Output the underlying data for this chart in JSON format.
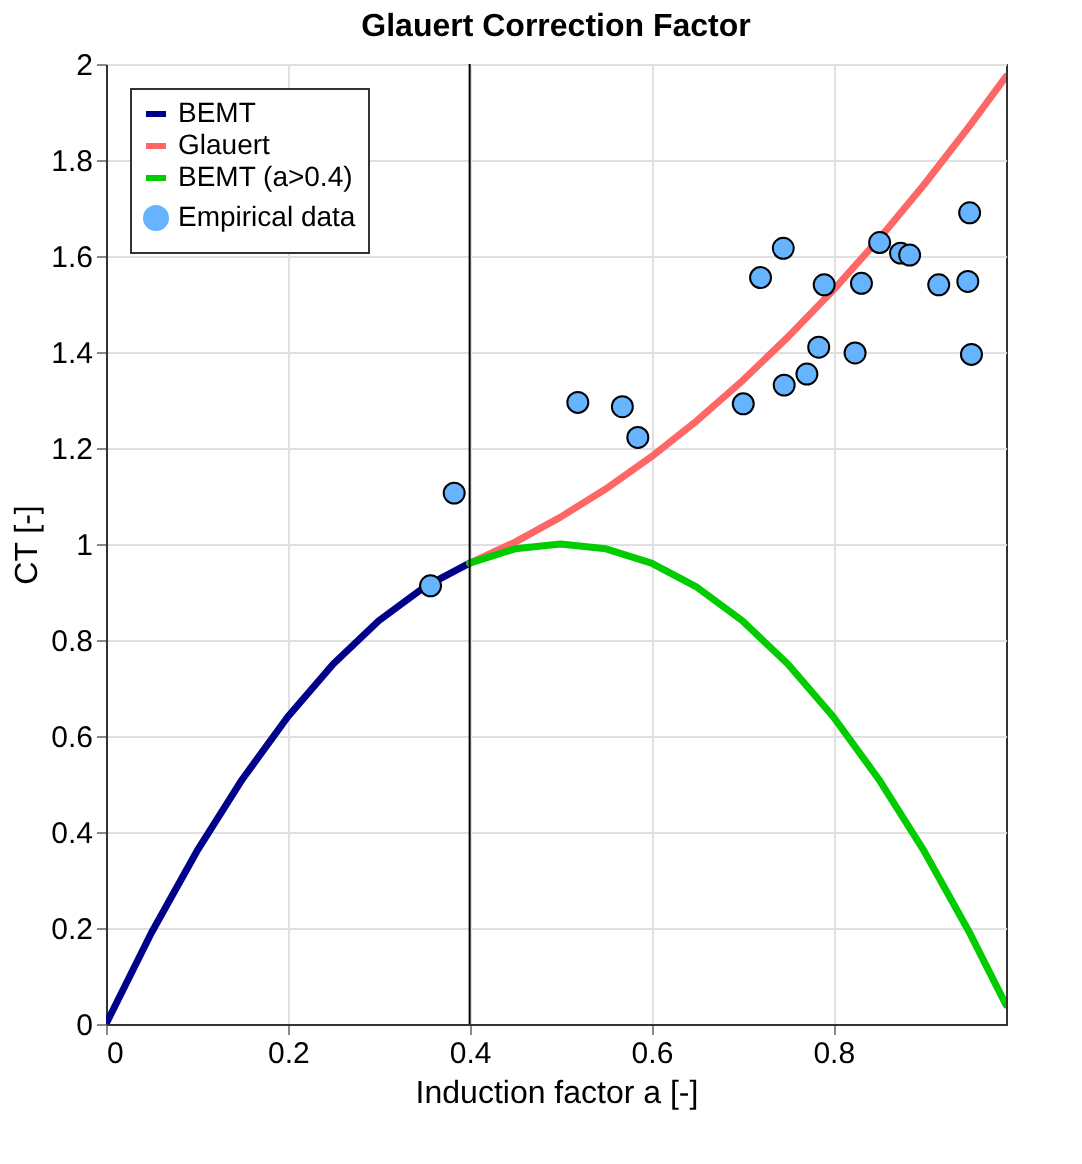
{
  "chart_data": {
    "type": "line",
    "title": "Glauert Correction Factor",
    "xlabel": "Induction factor a [-]",
    "ylabel": "CT [-]",
    "xlim": [
      0,
      0.99
    ],
    "ylim": [
      0,
      2
    ],
    "xticks": [
      0,
      0.2,
      0.4,
      0.6,
      0.8
    ],
    "yticks": [
      0,
      0.2,
      0.4,
      0.6,
      0.8,
      1,
      1.2,
      1.4,
      1.6,
      1.8,
      2
    ],
    "grid": true,
    "legend": "top left",
    "series": [
      {
        "name": "BEMT",
        "color": "#00008b",
        "x": [
          0,
          0.05,
          0.1,
          0.15,
          0.2,
          0.25,
          0.3,
          0.35,
          0.4
        ],
        "values": [
          0,
          0.19,
          0.36,
          0.51,
          0.64,
          0.75,
          0.84,
          0.91,
          0.96
        ]
      },
      {
        "name": "Glauert",
        "color": "#ff6666",
        "x": [
          0.4,
          0.45,
          0.5,
          0.55,
          0.6,
          0.65,
          0.7,
          0.75,
          0.8,
          0.85,
          0.9,
          0.95,
          0.99
        ],
        "values": [
          0.96,
          1.004,
          1.056,
          1.115,
          1.182,
          1.257,
          1.34,
          1.431,
          1.529,
          1.635,
          1.749,
          1.871,
          1.974
        ]
      },
      {
        "name": "BEMT (a>0.4)",
        "color": "#00cc00",
        "x": [
          0.4,
          0.45,
          0.5,
          0.55,
          0.6,
          0.65,
          0.7,
          0.75,
          0.8,
          0.85,
          0.9,
          0.95,
          0.99
        ],
        "values": [
          0.96,
          0.99,
          1.0,
          0.99,
          0.96,
          0.91,
          0.84,
          0.75,
          0.64,
          0.51,
          0.36,
          0.19,
          0.04
        ]
      },
      {
        "name": "Empirical data",
        "color": "#66b3ff",
        "type": "scatter",
        "marker": "circle",
        "x": [
          0.357,
          0.383,
          0.519,
          0.568,
          0.585,
          0.701,
          0.72,
          0.745,
          0.746,
          0.771,
          0.784,
          0.79,
          0.824,
          0.831,
          0.851,
          0.874,
          0.884,
          0.916,
          0.948,
          0.952,
          0.95
        ],
        "values": [
          0.913,
          1.106,
          1.295,
          1.286,
          1.222,
          1.292,
          1.555,
          1.616,
          1.331,
          1.354,
          1.41,
          1.54,
          1.398,
          1.543,
          1.628,
          1.606,
          1.602,
          1.54,
          1.547,
          1.395,
          1.69
        ]
      }
    ],
    "ref_lines": [
      {
        "axis": "x",
        "value": 0.4,
        "color": "#000000"
      }
    ]
  }
}
